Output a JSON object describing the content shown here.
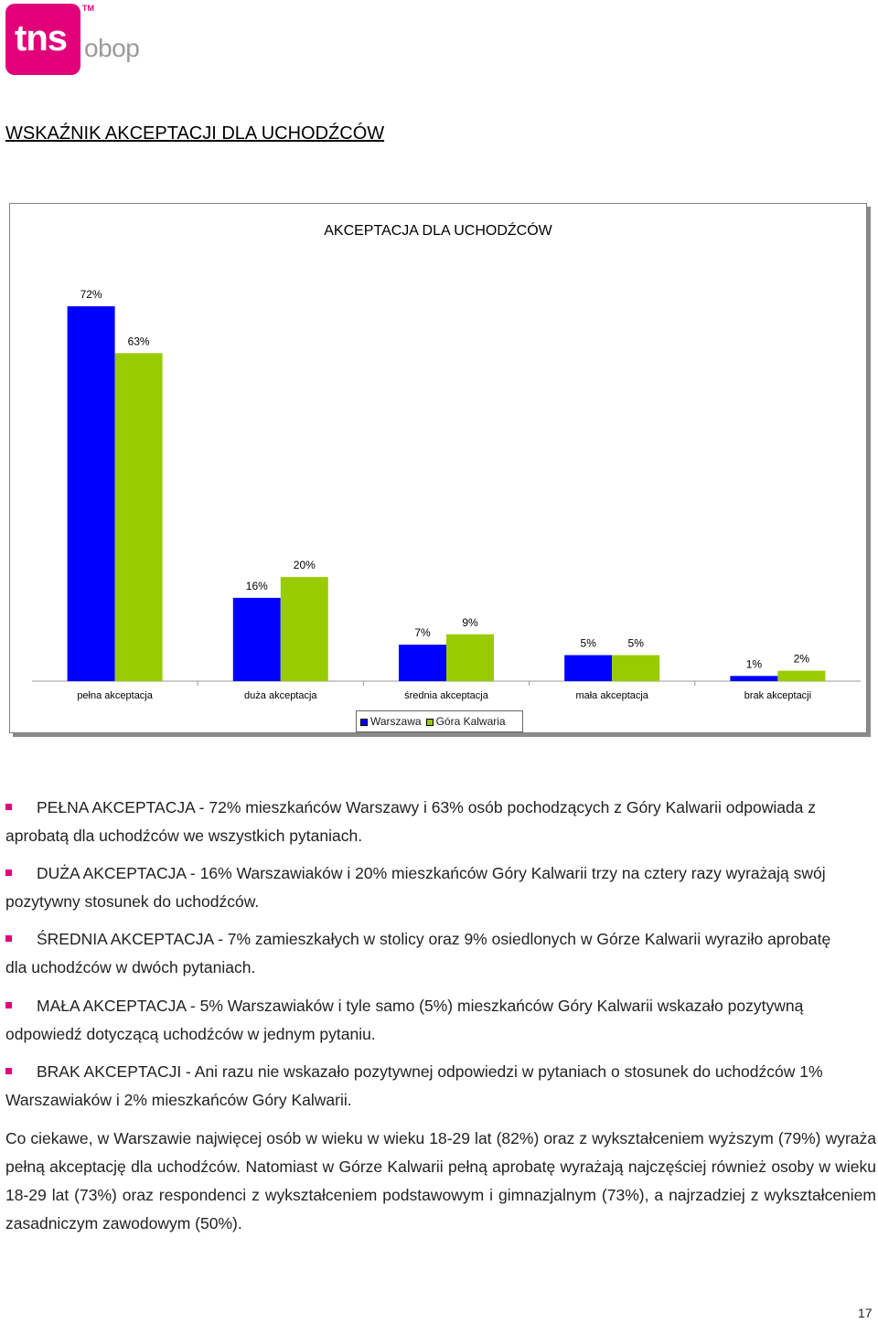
{
  "logo": {
    "brand": "tns",
    "suffix": "obop",
    "tm": "TM"
  },
  "heading": "WSKAŹNIK AKCEPTACJI DLA UCHODŹCÓW",
  "chart_data": {
    "type": "bar",
    "title": "AKCEPTACJA DLA UCHODŹCÓW",
    "categories": [
      "pełna akceptacja",
      "duża akceptacja",
      "średnia akceptacja",
      "mała akceptacja",
      "brak akceptacji"
    ],
    "series": [
      {
        "name": "Warszawa",
        "values": [
          72,
          16,
          7,
          5,
          1
        ],
        "labels": [
          "72%",
          "16%",
          "7%",
          "5%",
          "1%"
        ],
        "color": "#0000ff"
      },
      {
        "name": "Góra Kalwaria",
        "values": [
          63,
          20,
          9,
          5,
          2
        ],
        "labels": [
          "63%",
          "20%",
          "9%",
          "5%",
          "2%"
        ],
        "color": "#99cc00"
      }
    ],
    "ylim": [
      0,
      80
    ],
    "grid": false,
    "legend": "bottom"
  },
  "bullets": [
    "PEŁNA AKCEPTACJA - 72% mieszkańców Warszawy i 63% osób pochodzących z Góry Kalwarii odpowiada z aprobatą dla uchodźców we wszystkich pytaniach.",
    "DUŻA AKCEPTACJA - 16% Warszawiaków i 20% mieszkańców Góry Kalwarii trzy na cztery razy wyrażają swój pozytywny stosunek do uchodźców.",
    "ŚREDNIA AKCEPTACJA - 7% zamieszkałych w stolicy oraz 9% osiedlonych w Górze Kalwarii wyraziło aprobatę dla uchodźców w dwóch pytaniach.",
    "MAŁA AKCEPTACJA - 5% Warszawiaków i tyle samo (5%) mieszkańców Góry Kalwarii wskazało pozytywną odpowiedź dotyczącą uchodźców w jednym pytaniu.",
    "BRAK AKCEPTACJI - Ani razu nie wskazało pozytywnej odpowiedzi w pytaniach o stosunek do uchodźców 1% Warszawiaków i 2% mieszkańców Góry Kalwarii."
  ],
  "paragraph": "Co ciekawe, w Warszawie najwięcej osób w wieku w wieku 18-29 lat (82%) oraz z wykształceniem wyższym (79%) wyraża pełną akceptację dla uchodźców. Natomiast w Górze Kalwarii pełną aprobatę wyrażają najczęściej również osoby w wieku 18-29 lat (73%) oraz respondenci z wykształceniem podstawowym i gimnazjalnym (73%), a najrzadziej z wykształceniem zasadniczym zawodowym (50%).",
  "page_number": "17"
}
